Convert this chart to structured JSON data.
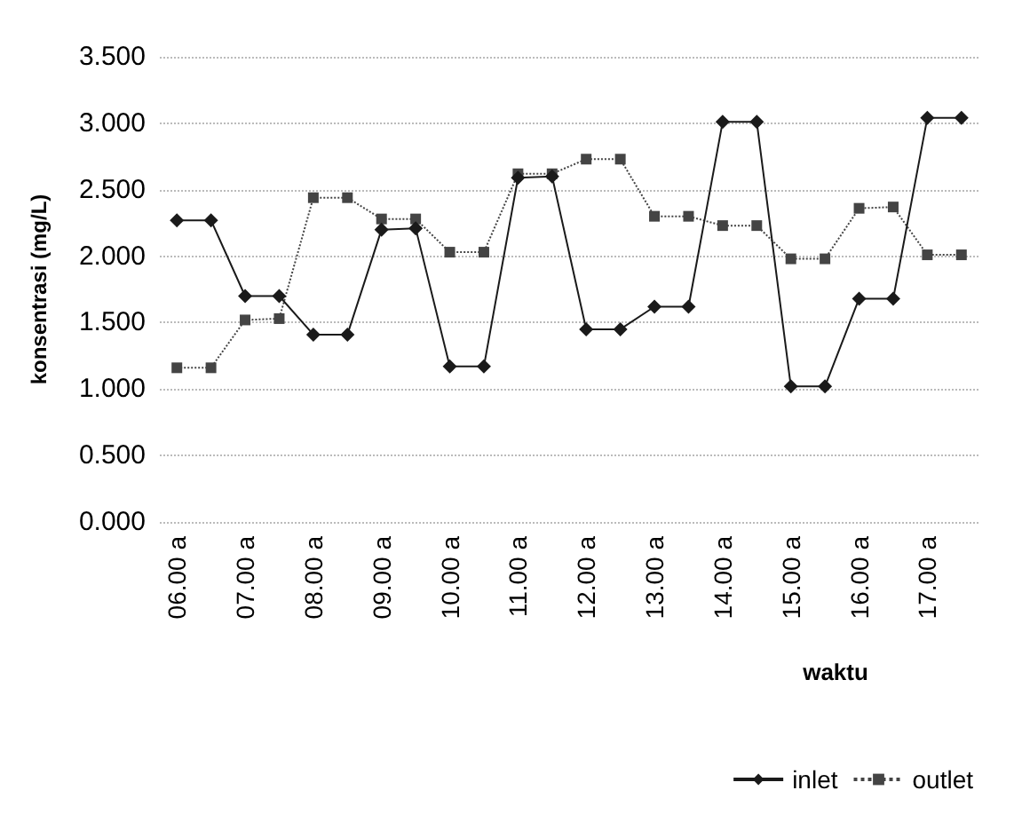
{
  "chart_data": {
    "type": "line",
    "xlabel": "waktu",
    "ylabel": "konsentrasi (mg/L)",
    "categories": [
      "06.00 a",
      null,
      "07.00 a",
      null,
      "08.00 a",
      null,
      "09.00 a",
      null,
      "10.00 a",
      null,
      "11.00 a",
      null,
      "12.00 a",
      null,
      "13.00 a",
      null,
      "14.00 a",
      null,
      "15.00 a",
      null,
      "16.00 a",
      null,
      "17.00 a",
      null
    ],
    "series": [
      {
        "name": "inlet",
        "color": "#1a1a1a",
        "marker": "diamond",
        "line_style": "solid",
        "values": [
          2.27,
          2.27,
          1.7,
          1.7,
          1.41,
          1.41,
          2.2,
          2.21,
          1.17,
          1.17,
          2.59,
          2.6,
          1.45,
          1.45,
          1.62,
          1.62,
          3.01,
          3.01,
          1.02,
          1.02,
          1.68,
          1.68,
          3.04,
          3.04
        ]
      },
      {
        "name": "outlet",
        "color": "#444444",
        "marker": "square",
        "line_style": "dotted",
        "values": [
          1.16,
          1.16,
          1.52,
          1.53,
          2.44,
          2.44,
          2.28,
          2.28,
          2.03,
          2.03,
          2.62,
          2.62,
          2.73,
          2.73,
          2.3,
          2.3,
          2.23,
          2.23,
          1.98,
          1.98,
          2.36,
          2.37,
          2.01,
          2.01
        ]
      }
    ],
    "ylim": [
      0,
      3.5
    ],
    "yticks": [
      {
        "value": 0,
        "label": "0.000"
      },
      {
        "value": 0.5,
        "label": "0.500"
      },
      {
        "value": 1,
        "label": "1.000"
      },
      {
        "value": 1.5,
        "label": "1.500"
      },
      {
        "value": 2,
        "label": "2.000"
      },
      {
        "value": 2.5,
        "label": "2.500"
      },
      {
        "value": 3,
        "label": "3.000"
      },
      {
        "value": 3.5,
        "label": "3.500"
      }
    ],
    "grid": "y",
    "legend": "bottom right"
  }
}
